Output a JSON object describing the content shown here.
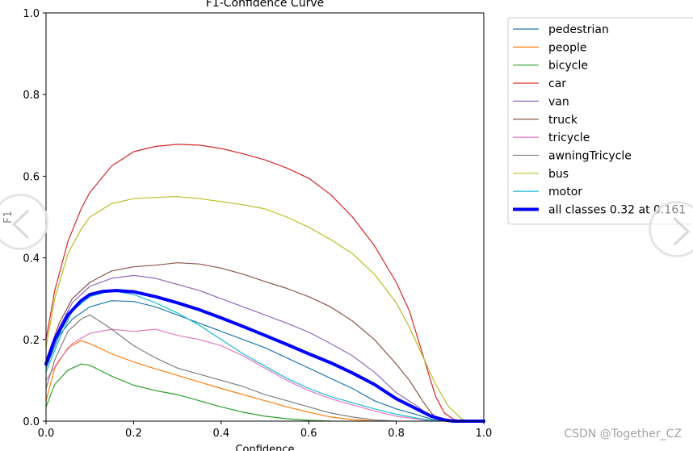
{
  "chart_data": {
    "type": "line",
    "title": "F1-Confidence Curve",
    "xlabel": "Confidence",
    "ylabel": "F1",
    "xlim": [
      0,
      1
    ],
    "ylim": [
      0,
      1
    ],
    "xticks": [
      0.0,
      0.2,
      0.4,
      0.6,
      0.8,
      1.0
    ],
    "yticks": [
      0.0,
      0.2,
      0.4,
      0.6,
      0.8,
      1.0
    ],
    "xtick_labels": [
      "0.0",
      "0.2",
      "0.4",
      "0.6",
      "0.8",
      "1.0"
    ],
    "ytick_labels": [
      "0.0",
      "0.2",
      "0.4",
      "0.6",
      "0.8",
      "1.0"
    ],
    "legend_position": "outside-right-top",
    "series": [
      {
        "name": "pedestrian",
        "color": "#1f77b4",
        "width": 1.2,
        "points": [
          [
            0,
            0.13
          ],
          [
            0.03,
            0.21
          ],
          [
            0.06,
            0.25
          ],
          [
            0.1,
            0.28
          ],
          [
            0.15,
            0.295
          ],
          [
            0.2,
            0.293
          ],
          [
            0.25,
            0.28
          ],
          [
            0.3,
            0.26
          ],
          [
            0.35,
            0.24
          ],
          [
            0.4,
            0.22
          ],
          [
            0.45,
            0.2
          ],
          [
            0.5,
            0.18
          ],
          [
            0.55,
            0.155
          ],
          [
            0.6,
            0.13
          ],
          [
            0.65,
            0.105
          ],
          [
            0.7,
            0.08
          ],
          [
            0.75,
            0.05
          ],
          [
            0.8,
            0.03
          ],
          [
            0.85,
            0.015
          ],
          [
            0.88,
            0.005
          ],
          [
            0.9,
            0
          ]
        ]
      },
      {
        "name": "people",
        "color": "#ff7f0e",
        "width": 1.2,
        "points": [
          [
            0,
            0.05
          ],
          [
            0.02,
            0.13
          ],
          [
            0.05,
            0.18
          ],
          [
            0.08,
            0.197
          ],
          [
            0.1,
            0.19
          ],
          [
            0.15,
            0.165
          ],
          [
            0.2,
            0.145
          ],
          [
            0.25,
            0.128
          ],
          [
            0.3,
            0.112
          ],
          [
            0.35,
            0.096
          ],
          [
            0.4,
            0.08
          ],
          [
            0.45,
            0.065
          ],
          [
            0.5,
            0.05
          ],
          [
            0.55,
            0.035
          ],
          [
            0.6,
            0.022
          ],
          [
            0.65,
            0.01
          ],
          [
            0.7,
            0.004
          ],
          [
            0.75,
            0
          ]
        ]
      },
      {
        "name": "bicycle",
        "color": "#2ca02c",
        "width": 1.2,
        "points": [
          [
            0,
            0.035
          ],
          [
            0.02,
            0.09
          ],
          [
            0.05,
            0.125
          ],
          [
            0.08,
            0.14
          ],
          [
            0.1,
            0.137
          ],
          [
            0.15,
            0.11
          ],
          [
            0.2,
            0.088
          ],
          [
            0.25,
            0.075
          ],
          [
            0.3,
            0.065
          ],
          [
            0.35,
            0.05
          ],
          [
            0.4,
            0.035
          ],
          [
            0.45,
            0.022
          ],
          [
            0.5,
            0.012
          ],
          [
            0.55,
            0.006
          ],
          [
            0.6,
            0.002
          ],
          [
            0.65,
            0
          ]
        ]
      },
      {
        "name": "car",
        "color": "#d62728",
        "width": 1.2,
        "points": [
          [
            0,
            0.2
          ],
          [
            0.02,
            0.32
          ],
          [
            0.05,
            0.44
          ],
          [
            0.08,
            0.52
          ],
          [
            0.1,
            0.56
          ],
          [
            0.15,
            0.625
          ],
          [
            0.2,
            0.66
          ],
          [
            0.25,
            0.673
          ],
          [
            0.3,
            0.678
          ],
          [
            0.35,
            0.676
          ],
          [
            0.4,
            0.668
          ],
          [
            0.45,
            0.655
          ],
          [
            0.5,
            0.64
          ],
          [
            0.55,
            0.62
          ],
          [
            0.6,
            0.595
          ],
          [
            0.65,
            0.555
          ],
          [
            0.7,
            0.5
          ],
          [
            0.75,
            0.43
          ],
          [
            0.8,
            0.34
          ],
          [
            0.83,
            0.27
          ],
          [
            0.85,
            0.2
          ],
          [
            0.87,
            0.13
          ],
          [
            0.89,
            0.06
          ],
          [
            0.91,
            0.02
          ],
          [
            0.93,
            0.005
          ],
          [
            0.95,
            0
          ],
          [
            1.0,
            0
          ]
        ]
      },
      {
        "name": "van",
        "color": "#9467bd",
        "width": 1.2,
        "points": [
          [
            0,
            0.15
          ],
          [
            0.03,
            0.23
          ],
          [
            0.06,
            0.29
          ],
          [
            0.1,
            0.33
          ],
          [
            0.15,
            0.35
          ],
          [
            0.2,
            0.357
          ],
          [
            0.25,
            0.35
          ],
          [
            0.3,
            0.335
          ],
          [
            0.35,
            0.32
          ],
          [
            0.4,
            0.3
          ],
          [
            0.45,
            0.28
          ],
          [
            0.5,
            0.26
          ],
          [
            0.55,
            0.24
          ],
          [
            0.6,
            0.218
          ],
          [
            0.65,
            0.19
          ],
          [
            0.7,
            0.16
          ],
          [
            0.75,
            0.12
          ],
          [
            0.8,
            0.07
          ],
          [
            0.85,
            0.035
          ],
          [
            0.88,
            0.01
          ],
          [
            0.9,
            0
          ]
        ]
      },
      {
        "name": "truck",
        "color": "#8c564b",
        "width": 1.2,
        "points": [
          [
            0,
            0.15
          ],
          [
            0.03,
            0.24
          ],
          [
            0.06,
            0.3
          ],
          [
            0.1,
            0.34
          ],
          [
            0.15,
            0.368
          ],
          [
            0.2,
            0.378
          ],
          [
            0.25,
            0.382
          ],
          [
            0.3,
            0.388
          ],
          [
            0.35,
            0.385
          ],
          [
            0.4,
            0.375
          ],
          [
            0.45,
            0.36
          ],
          [
            0.5,
            0.342
          ],
          [
            0.55,
            0.325
          ],
          [
            0.6,
            0.305
          ],
          [
            0.65,
            0.28
          ],
          [
            0.7,
            0.245
          ],
          [
            0.75,
            0.2
          ],
          [
            0.8,
            0.14
          ],
          [
            0.83,
            0.1
          ],
          [
            0.86,
            0.05
          ],
          [
            0.88,
            0.02
          ],
          [
            0.9,
            0
          ]
        ]
      },
      {
        "name": "tricycle",
        "color": "#e377c2",
        "width": 1.2,
        "points": [
          [
            0,
            0.1
          ],
          [
            0.03,
            0.15
          ],
          [
            0.06,
            0.19
          ],
          [
            0.1,
            0.215
          ],
          [
            0.15,
            0.225
          ],
          [
            0.2,
            0.22
          ],
          [
            0.25,
            0.225
          ],
          [
            0.3,
            0.21
          ],
          [
            0.35,
            0.2
          ],
          [
            0.4,
            0.185
          ],
          [
            0.45,
            0.16
          ],
          [
            0.5,
            0.13
          ],
          [
            0.55,
            0.1
          ],
          [
            0.6,
            0.075
          ],
          [
            0.65,
            0.055
          ],
          [
            0.7,
            0.04
          ],
          [
            0.75,
            0.025
          ],
          [
            0.8,
            0.012
          ],
          [
            0.85,
            0.005
          ],
          [
            0.88,
            0
          ]
        ]
      },
      {
        "name": "awningTricycle",
        "color": "#7f7f7f",
        "width": 1.2,
        "points": [
          [
            0,
            0.08
          ],
          [
            0.02,
            0.15
          ],
          [
            0.05,
            0.22
          ],
          [
            0.08,
            0.25
          ],
          [
            0.1,
            0.26
          ],
          [
            0.13,
            0.24
          ],
          [
            0.15,
            0.225
          ],
          [
            0.2,
            0.185
          ],
          [
            0.25,
            0.155
          ],
          [
            0.3,
            0.13
          ],
          [
            0.35,
            0.115
          ],
          [
            0.4,
            0.1
          ],
          [
            0.45,
            0.085
          ],
          [
            0.5,
            0.065
          ],
          [
            0.55,
            0.05
          ],
          [
            0.6,
            0.035
          ],
          [
            0.65,
            0.02
          ],
          [
            0.7,
            0.01
          ],
          [
            0.75,
            0.003
          ],
          [
            0.8,
            0
          ]
        ]
      },
      {
        "name": "bus",
        "color": "#bcbd22",
        "width": 1.2,
        "points": [
          [
            0,
            0.18
          ],
          [
            0.02,
            0.3
          ],
          [
            0.05,
            0.41
          ],
          [
            0.08,
            0.47
          ],
          [
            0.1,
            0.5
          ],
          [
            0.15,
            0.533
          ],
          [
            0.2,
            0.545
          ],
          [
            0.25,
            0.548
          ],
          [
            0.3,
            0.55
          ],
          [
            0.35,
            0.545
          ],
          [
            0.4,
            0.538
          ],
          [
            0.45,
            0.53
          ],
          [
            0.5,
            0.52
          ],
          [
            0.55,
            0.5
          ],
          [
            0.6,
            0.475
          ],
          [
            0.65,
            0.445
          ],
          [
            0.7,
            0.41
          ],
          [
            0.75,
            0.36
          ],
          [
            0.8,
            0.29
          ],
          [
            0.83,
            0.23
          ],
          [
            0.86,
            0.16
          ],
          [
            0.89,
            0.09
          ],
          [
            0.92,
            0.035
          ],
          [
            0.95,
            0.005
          ],
          [
            0.97,
            0
          ],
          [
            1.0,
            0
          ]
        ]
      },
      {
        "name": "motor",
        "color": "#17becf",
        "width": 1.2,
        "points": [
          [
            0,
            0.12
          ],
          [
            0.03,
            0.2
          ],
          [
            0.06,
            0.27
          ],
          [
            0.1,
            0.305
          ],
          [
            0.15,
            0.32
          ],
          [
            0.2,
            0.31
          ],
          [
            0.25,
            0.29
          ],
          [
            0.3,
            0.265
          ],
          [
            0.35,
            0.235
          ],
          [
            0.4,
            0.2
          ],
          [
            0.45,
            0.165
          ],
          [
            0.5,
            0.135
          ],
          [
            0.55,
            0.105
          ],
          [
            0.6,
            0.08
          ],
          [
            0.65,
            0.06
          ],
          [
            0.7,
            0.045
          ],
          [
            0.75,
            0.03
          ],
          [
            0.8,
            0.017
          ],
          [
            0.85,
            0.007
          ],
          [
            0.88,
            0.002
          ],
          [
            0.9,
            0
          ]
        ]
      },
      {
        "name": "all classes 0.32 at 0.161",
        "color": "#0000ff",
        "width": 4,
        "points": [
          [
            0,
            0.14
          ],
          [
            0.02,
            0.2
          ],
          [
            0.05,
            0.26
          ],
          [
            0.08,
            0.295
          ],
          [
            0.1,
            0.31
          ],
          [
            0.13,
            0.318
          ],
          [
            0.161,
            0.32
          ],
          [
            0.2,
            0.317
          ],
          [
            0.25,
            0.305
          ],
          [
            0.3,
            0.29
          ],
          [
            0.35,
            0.273
          ],
          [
            0.4,
            0.253
          ],
          [
            0.45,
            0.232
          ],
          [
            0.5,
            0.21
          ],
          [
            0.55,
            0.188
          ],
          [
            0.6,
            0.165
          ],
          [
            0.65,
            0.143
          ],
          [
            0.7,
            0.118
          ],
          [
            0.75,
            0.09
          ],
          [
            0.8,
            0.055
          ],
          [
            0.85,
            0.028
          ],
          [
            0.88,
            0.012
          ],
          [
            0.91,
            0.003
          ],
          [
            0.93,
            0
          ],
          [
            1.0,
            0
          ]
        ]
      }
    ]
  },
  "watermark": "CSDN @Together_CZ",
  "icons": {
    "nav_left": "chevron-left-icon",
    "nav_right": "chevron-right-icon"
  }
}
